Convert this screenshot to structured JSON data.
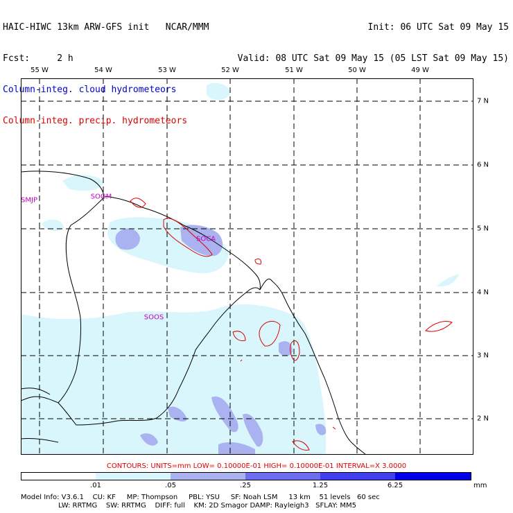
{
  "header": {
    "title": "HAIC-HIWC 13km ARW-GFS init   NCAR/MMM",
    "forecast": "Fcst:     2 h",
    "legend_cloud": "Column-integ. cloud hydrometeors",
    "legend_precip": "Column-integ. precip. hydrometeors",
    "init": "Init: 06 UTC Sat 09 May 15",
    "valid": "Valid: 08 UTC Sat 09 May 15 (05 LST Sat 09 May 15)"
  },
  "map": {
    "longitude_labels": [
      "55 W",
      "54 W",
      "53 W",
      "52 W",
      "51 W",
      "50 W",
      "49 W"
    ],
    "latitude_labels": [
      "7 N",
      "6 N",
      "5 N",
      "4 N",
      "3 N",
      "2 N"
    ],
    "stations": [
      "SMJP",
      "SOGM",
      "SOCA",
      "SOOS"
    ],
    "colors": {
      "coast": "#000000",
      "grid": "#000000",
      "cloud_light": "#d8f6fb",
      "cloud_medium": "#aab2f0",
      "precip_contour": "#dd0000",
      "station_label": "#c000c0"
    }
  },
  "contours_line": "CONTOURS:  UNITS=mm  LOW= 0.10000E-01  HIGH= 0.10000E-01  INTERVAL=X  3.0000",
  "colorbar": {
    "ticks": [
      ".01",
      ".05",
      ".25",
      "1.25",
      "6.25"
    ],
    "unit": "mm",
    "colors": [
      "#ffffff",
      "#d8f6fb",
      "#aab2f0",
      "#6e6ef0",
      "#4040f0",
      "#0000e8"
    ]
  },
  "footer": {
    "line1": "Model Info: V3.6.1    CU: KF     MP: Thompson     PBL: YSU     SF: Noah LSM     13 km    51 levels   60 sec",
    "line2": "                 LW: RRTMG    SW: RRTMG    DIFF: full    KM: 2D Smagor DAMP: Rayleigh3   SFLAY: MM5"
  }
}
